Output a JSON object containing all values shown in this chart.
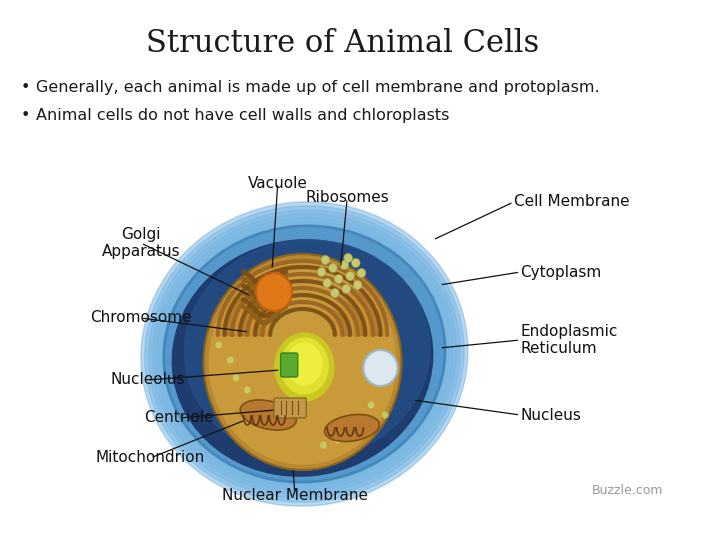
{
  "title": "Structure of Animal Cells",
  "bullet1": "Generally, each animal is made up of cell membrane and protoplasm.",
  "bullet2": "Animal cells do not have cell walls and chloroplasts",
  "bg_color": "#ffffff",
  "title_fontsize": 22,
  "bullet_fontsize": 11.5,
  "watermark": "Buzzle.com",
  "watermark_fontsize": 9,
  "label_fontsize": 11
}
